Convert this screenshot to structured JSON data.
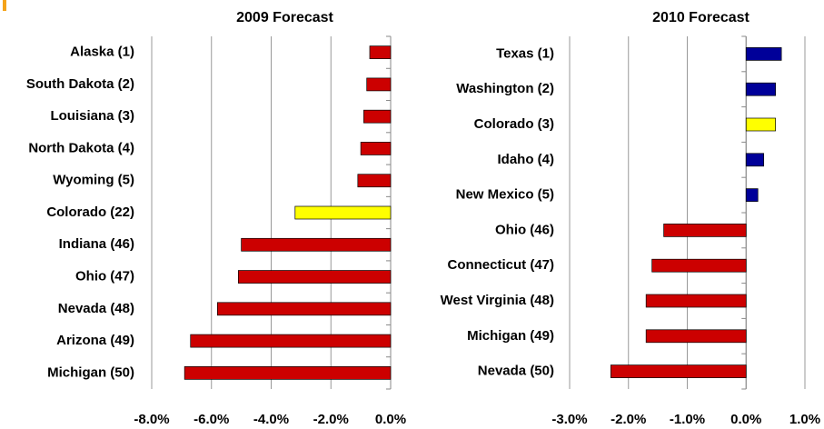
{
  "chart_data": [
    {
      "type": "bar",
      "orientation": "horizontal",
      "title": "2009 Forecast",
      "categories": [
        "Alaska (1)",
        "South Dakota (2)",
        "Louisiana (3)",
        "North Dakota (4)",
        "Wyoming (5)",
        "Colorado (22)",
        "Indiana (46)",
        "Ohio (47)",
        "Nevada (48)",
        "Arizona (49)",
        "Michigan (50)"
      ],
      "values": [
        -0.7,
        -0.8,
        -0.9,
        -1.0,
        -1.1,
        -3.2,
        -5.0,
        -5.1,
        -5.8,
        -6.7,
        -6.9
      ],
      "colors": [
        "#cc0000",
        "#cc0000",
        "#cc0000",
        "#cc0000",
        "#cc0000",
        "#ffff00",
        "#cc0000",
        "#cc0000",
        "#cc0000",
        "#cc0000",
        "#cc0000"
      ],
      "xlim": [
        -8,
        0
      ],
      "xticks": [
        {
          "value": -8,
          "label": "-8.0%"
        },
        {
          "value": -6,
          "label": "-6.0%"
        },
        {
          "value": -4,
          "label": "-4.0%"
        },
        {
          "value": -2,
          "label": "-2.0%"
        },
        {
          "value": 0,
          "label": "0.0%"
        }
      ],
      "grid": true
    },
    {
      "type": "bar",
      "orientation": "horizontal",
      "title": "2010 Forecast",
      "categories": [
        "Texas (1)",
        "Washington (2)",
        "Colorado (3)",
        "Idaho (4)",
        "New Mexico (5)",
        "Ohio (46)",
        "Connecticut (47)",
        "West Virginia (48)",
        "Michigan (49)",
        "Nevada (50)"
      ],
      "values": [
        0.6,
        0.5,
        0.5,
        0.3,
        0.2,
        -1.4,
        -1.6,
        -1.7,
        -1.7,
        -2.3
      ],
      "colors": [
        "#000099",
        "#000099",
        "#ffff00",
        "#000099",
        "#000099",
        "#cc0000",
        "#cc0000",
        "#cc0000",
        "#cc0000",
        "#cc0000"
      ],
      "xlim": [
        -3,
        1
      ],
      "xticks": [
        {
          "value": -3,
          "label": "-3.0%"
        },
        {
          "value": -2,
          "label": "-2.0%"
        },
        {
          "value": -1,
          "label": "-1.0%"
        },
        {
          "value": 0,
          "label": "0.0%"
        },
        {
          "value": 1,
          "label": "1.0%"
        }
      ],
      "grid": true
    }
  ]
}
